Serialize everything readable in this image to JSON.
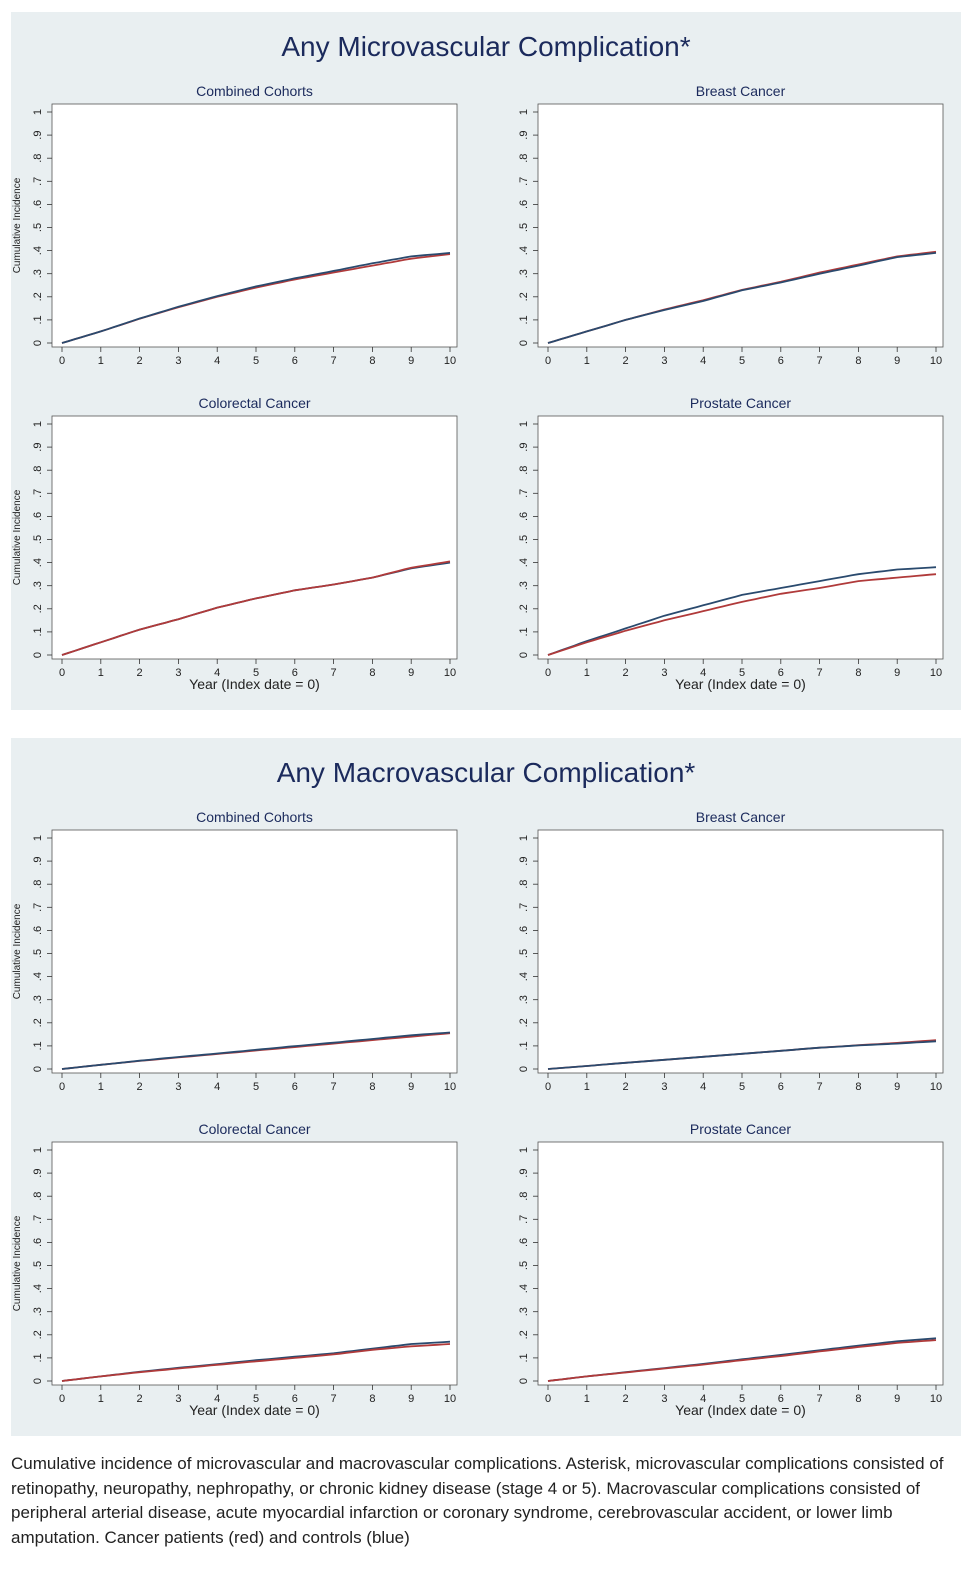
{
  "figures": [
    {
      "title": "Any Microvascular Complication*",
      "panels": [
        {
          "title": "Combined Cohorts",
          "ylabel": "Cumulative Incidence",
          "xlabel": ""
        },
        {
          "title": "Breast Cancer",
          "ylabel": "",
          "xlabel": ""
        },
        {
          "title": "Colorectal Cancer",
          "ylabel": "Cumulative Incidence",
          "xlabel": "Year (Index date = 0)"
        },
        {
          "title": "Prostate Cancer",
          "ylabel": "",
          "xlabel": "Year (Index date = 0)"
        }
      ]
    },
    {
      "title": "Any Macrovascular Complication*",
      "panels": [
        {
          "title": "Combined Cohorts",
          "ylabel": "Cumulative Incidence",
          "xlabel": ""
        },
        {
          "title": "Breast Cancer",
          "ylabel": "",
          "xlabel": ""
        },
        {
          "title": "Colorectal Cancer",
          "ylabel": "Cumulative Incidence",
          "xlabel": "Year (Index date = 0)"
        },
        {
          "title": "Prostate Cancer",
          "ylabel": "",
          "xlabel": "Year (Index date = 0)"
        }
      ]
    }
  ],
  "caption": "Cumulative incidence of microvascular and macrovascular complications. Asterisk, microvascular complications consisted of retinopathy, neuropathy, nephropathy, or chronic kidney disease (stage 4 or 5). Macrovascular complications consisted of peripheral arterial disease, acute myocardial infarction or coronary syndrome, cerebrovascular accident, or lower limb amputation. Cancer patients (red) and controls (blue)",
  "colors": {
    "cancer": "#b03a3a",
    "control": "#2a4a6e",
    "background": "#e9eff1"
  },
  "chart_data": [
    {
      "type": "line",
      "title": "Combined Cohorts",
      "xlim": [
        0,
        10
      ],
      "ylim": [
        0,
        1
      ],
      "xticks": [
        "0",
        "1",
        "2",
        "3",
        "4",
        "5",
        "6",
        "7",
        "8",
        "9",
        "10"
      ],
      "yticks": [
        "0",
        ".1",
        ".2",
        ".3",
        ".4",
        ".5",
        ".6",
        ".7",
        ".8",
        ".9",
        "1"
      ],
      "ylabel": "Cumulative Incidence",
      "xlabel": "",
      "x": [
        0,
        1,
        2,
        3,
        4,
        5,
        6,
        7,
        8,
        9,
        10
      ],
      "series": [
        {
          "color": "#b03a3a",
          "values": [
            0,
            0.05,
            0.105,
            0.155,
            0.2,
            0.24,
            0.275,
            0.305,
            0.335,
            0.365,
            0.385
          ]
        },
        {
          "color": "#2a4a6e",
          "values": [
            0,
            0.05,
            0.106,
            0.157,
            0.203,
            0.245,
            0.28,
            0.312,
            0.345,
            0.375,
            0.39
          ]
        }
      ]
    },
    {
      "type": "line",
      "title": "Breast Cancer",
      "xlim": [
        0,
        10
      ],
      "ylim": [
        0,
        1
      ],
      "xticks": [
        "0",
        "1",
        "2",
        "3",
        "4",
        "5",
        "6",
        "7",
        "8",
        "9",
        "10"
      ],
      "yticks": [
        "0",
        ".1",
        ".2",
        ".3",
        ".4",
        ".5",
        ".6",
        ".7",
        ".8",
        ".9",
        "1"
      ],
      "ylabel": "",
      "xlabel": "",
      "x": [
        0,
        1,
        2,
        3,
        4,
        5,
        6,
        7,
        8,
        9,
        10
      ],
      "series": [
        {
          "color": "#b03a3a",
          "values": [
            0,
            0.05,
            0.1,
            0.145,
            0.185,
            0.23,
            0.265,
            0.305,
            0.34,
            0.375,
            0.395
          ]
        },
        {
          "color": "#2a4a6e",
          "values": [
            0,
            0.05,
            0.1,
            0.143,
            0.182,
            0.228,
            0.262,
            0.3,
            0.335,
            0.372,
            0.39
          ]
        }
      ]
    },
    {
      "type": "line",
      "title": "Colorectal Cancer",
      "xlim": [
        0,
        10
      ],
      "ylim": [
        0,
        1
      ],
      "xticks": [
        "0",
        "1",
        "2",
        "3",
        "4",
        "5",
        "6",
        "7",
        "8",
        "9",
        "10"
      ],
      "yticks": [
        "0",
        ".1",
        ".2",
        ".3",
        ".4",
        ".5",
        ".6",
        ".7",
        ".8",
        ".9",
        "1"
      ],
      "ylabel": "Cumulative Incidence",
      "xlabel": "Year (Index date = 0)",
      "x": [
        0,
        1,
        2,
        3,
        4,
        5,
        6,
        7,
        8,
        9,
        10
      ],
      "series": [
        {
          "color": "#2a4a6e",
          "values": [
            0,
            0.055,
            0.11,
            0.155,
            0.205,
            0.245,
            0.28,
            0.305,
            0.335,
            0.375,
            0.4
          ]
        },
        {
          "color": "#b03a3a",
          "values": [
            0,
            0.055,
            0.11,
            0.155,
            0.205,
            0.245,
            0.28,
            0.305,
            0.335,
            0.378,
            0.405
          ]
        }
      ]
    },
    {
      "type": "line",
      "title": "Prostate Cancer",
      "xlim": [
        0,
        10
      ],
      "ylim": [
        0,
        1
      ],
      "xticks": [
        "0",
        "1",
        "2",
        "3",
        "4",
        "5",
        "6",
        "7",
        "8",
        "9",
        "10"
      ],
      "yticks": [
        "0",
        ".1",
        ".2",
        ".3",
        ".4",
        ".5",
        ".6",
        ".7",
        ".8",
        ".9",
        "1"
      ],
      "ylabel": "",
      "xlabel": "Year (Index date = 0)",
      "x": [
        0,
        1,
        2,
        3,
        4,
        5,
        6,
        7,
        8,
        9,
        10
      ],
      "series": [
        {
          "color": "#2a4a6e",
          "values": [
            0,
            0.06,
            0.115,
            0.17,
            0.215,
            0.26,
            0.29,
            0.32,
            0.35,
            0.37,
            0.38
          ]
        },
        {
          "color": "#b03a3a",
          "values": [
            0,
            0.055,
            0.105,
            0.15,
            0.19,
            0.23,
            0.265,
            0.29,
            0.32,
            0.335,
            0.35
          ]
        }
      ]
    },
    {
      "type": "line",
      "title": "Combined Cohorts",
      "xlim": [
        0,
        10
      ],
      "ylim": [
        0,
        1
      ],
      "xticks": [
        "0",
        "1",
        "2",
        "3",
        "4",
        "5",
        "6",
        "7",
        "8",
        "9",
        "10"
      ],
      "yticks": [
        "0",
        ".1",
        ".2",
        ".3",
        ".4",
        ".5",
        ".6",
        ".7",
        ".8",
        ".9",
        "1"
      ],
      "ylabel": "Cumulative Incidence",
      "xlabel": "",
      "x": [
        0,
        1,
        2,
        3,
        4,
        5,
        6,
        7,
        8,
        9,
        10
      ],
      "series": [
        {
          "color": "#b03a3a",
          "values": [
            0,
            0.018,
            0.035,
            0.05,
            0.065,
            0.08,
            0.095,
            0.11,
            0.125,
            0.14,
            0.155
          ]
        },
        {
          "color": "#2a4a6e",
          "values": [
            0,
            0.018,
            0.036,
            0.052,
            0.067,
            0.083,
            0.099,
            0.114,
            0.13,
            0.146,
            0.158
          ]
        }
      ]
    },
    {
      "type": "line",
      "title": "Breast Cancer",
      "xlim": [
        0,
        10
      ],
      "ylim": [
        0,
        1
      ],
      "xticks": [
        "0",
        "1",
        "2",
        "3",
        "4",
        "5",
        "6",
        "7",
        "8",
        "9",
        "10"
      ],
      "yticks": [
        "0",
        ".1",
        ".2",
        ".3",
        ".4",
        ".5",
        ".6",
        ".7",
        ".8",
        ".9",
        "1"
      ],
      "ylabel": "",
      "xlabel": "",
      "x": [
        0,
        1,
        2,
        3,
        4,
        5,
        6,
        7,
        8,
        9,
        10
      ],
      "series": [
        {
          "color": "#b03a3a",
          "values": [
            0,
            0.013,
            0.027,
            0.04,
            0.053,
            0.066,
            0.079,
            0.092,
            0.103,
            0.113,
            0.125
          ]
        },
        {
          "color": "#2a4a6e",
          "values": [
            0,
            0.013,
            0.027,
            0.04,
            0.053,
            0.066,
            0.079,
            0.092,
            0.102,
            0.11,
            0.12
          ]
        }
      ]
    },
    {
      "type": "line",
      "title": "Colorectal Cancer",
      "xlim": [
        0,
        10
      ],
      "ylim": [
        0,
        1
      ],
      "xticks": [
        "0",
        "1",
        "2",
        "3",
        "4",
        "5",
        "6",
        "7",
        "8",
        "9",
        "10"
      ],
      "yticks": [
        "0",
        ".1",
        ".2",
        ".3",
        ".4",
        ".5",
        ".6",
        ".7",
        ".8",
        ".9",
        "1"
      ],
      "ylabel": "Cumulative Incidence",
      "xlabel": "Year (Index date = 0)",
      "x": [
        0,
        1,
        2,
        3,
        4,
        5,
        6,
        7,
        8,
        9,
        10
      ],
      "series": [
        {
          "color": "#2a4a6e",
          "values": [
            0,
            0.02,
            0.04,
            0.057,
            0.073,
            0.09,
            0.105,
            0.12,
            0.14,
            0.16,
            0.17
          ]
        },
        {
          "color": "#b03a3a",
          "values": [
            0,
            0.02,
            0.038,
            0.054,
            0.07,
            0.085,
            0.1,
            0.115,
            0.135,
            0.15,
            0.16
          ]
        }
      ]
    },
    {
      "type": "line",
      "title": "Prostate Cancer",
      "xlim": [
        0,
        10
      ],
      "ylim": [
        0,
        1
      ],
      "xticks": [
        "0",
        "1",
        "2",
        "3",
        "4",
        "5",
        "6",
        "7",
        "8",
        "9",
        "10"
      ],
      "yticks": [
        "0",
        ".1",
        ".2",
        ".3",
        ".4",
        ".5",
        ".6",
        ".7",
        ".8",
        ".9",
        "1"
      ],
      "ylabel": "",
      "xlabel": "Year (Index date = 0)",
      "x": [
        0,
        1,
        2,
        3,
        4,
        5,
        6,
        7,
        8,
        9,
        10
      ],
      "series": [
        {
          "color": "#2a4a6e",
          "values": [
            0,
            0.02,
            0.038,
            0.056,
            0.074,
            0.094,
            0.113,
            0.133,
            0.153,
            0.172,
            0.185
          ]
        },
        {
          "color": "#b03a3a",
          "values": [
            0,
            0.02,
            0.037,
            0.054,
            0.071,
            0.09,
            0.108,
            0.128,
            0.147,
            0.165,
            0.177
          ]
        }
      ]
    }
  ]
}
